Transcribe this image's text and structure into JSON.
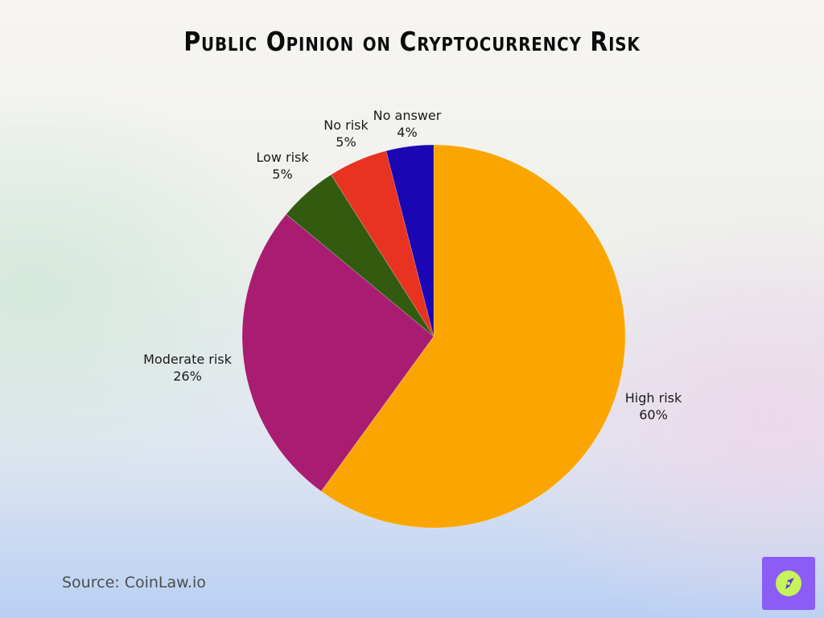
{
  "title": "Public Opinion on Cryptocurrency Risk",
  "source": "Source: CoinLaw.io",
  "chart_data": {
    "type": "pie",
    "title": "Public Opinion on Cryptocurrency Risk",
    "slices": [
      {
        "label": "High risk",
        "value": 60,
        "value_label": "60%",
        "color": "#fba600"
      },
      {
        "label": "Moderate risk",
        "value": 26,
        "value_label": "26%",
        "color": "#a81d72"
      },
      {
        "label": "Low risk",
        "value": 5,
        "value_label": "5%",
        "color": "#335b10"
      },
      {
        "label": "No risk",
        "value": 5,
        "value_label": "5%",
        "color": "#e73320"
      },
      {
        "label": "No answer",
        "value": 4,
        "value_label": "4%",
        "color": "#1a06b3"
      }
    ],
    "start_direction": "top",
    "direction": "clockwise"
  },
  "logo": {
    "icon": "compass-icon",
    "background": "#8b5cf6",
    "accent": "#c6f25a"
  }
}
